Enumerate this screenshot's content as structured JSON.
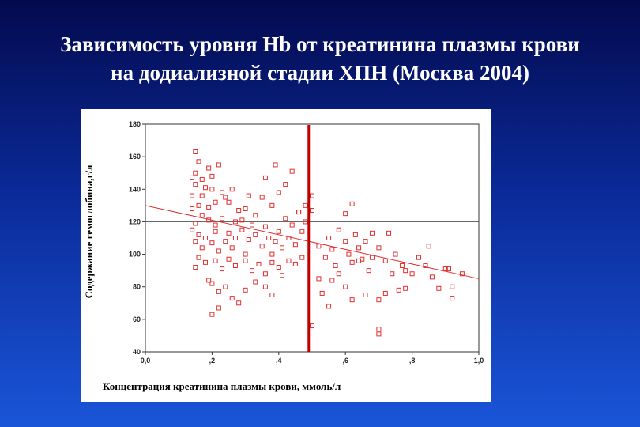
{
  "slide": {
    "title_line1": "Зависимость уровня Hb от креатинина плазмы крови",
    "title_line2": "на додиализной стадии ХПН (Москва 2004)"
  },
  "colors": {
    "background_top": "#040a4e",
    "background_bottom": "#1a55d8",
    "points": "#e03030",
    "regression": "#e03030",
    "vertical_marker": "#c00000",
    "reference_line": "#505050"
  },
  "chart_data": {
    "type": "scatter",
    "title": "",
    "xlabel": "Концентрация креатинина плазмы крови, ммоль/л",
    "ylabel": "Содержание гемоглобина,г/л",
    "xlim": [
      0.0,
      1.0
    ],
    "ylim": [
      40,
      180
    ],
    "xticks": [
      0.0,
      0.2,
      0.4,
      0.6,
      0.8,
      1.0
    ],
    "xtick_labels": [
      "0,0",
      ",2",
      ",4",
      ",6",
      ",8",
      "1,0"
    ],
    "yticks": [
      40,
      60,
      80,
      100,
      120,
      140,
      160,
      180
    ],
    "grid": false,
    "regression_line": {
      "x": [
        0.0,
        1.0
      ],
      "y": [
        130,
        85
      ]
    },
    "vertical_marker_x": 0.49,
    "horizontal_reference_y": 120,
    "points": [
      [
        0.15,
        163
      ],
      [
        0.16,
        157
      ],
      [
        0.15,
        150
      ],
      [
        0.14,
        147
      ],
      [
        0.15,
        143
      ],
      [
        0.17,
        146
      ],
      [
        0.19,
        153
      ],
      [
        0.2,
        148
      ],
      [
        0.22,
        155
      ],
      [
        0.17,
        136
      ],
      [
        0.18,
        141
      ],
      [
        0.2,
        140
      ],
      [
        0.21,
        132
      ],
      [
        0.14,
        136
      ],
      [
        0.14,
        128
      ],
      [
        0.16,
        130
      ],
      [
        0.19,
        129
      ],
      [
        0.23,
        138
      ],
      [
        0.24,
        135
      ],
      [
        0.26,
        140
      ],
      [
        0.28,
        127
      ],
      [
        0.25,
        132
      ],
      [
        0.29,
        121
      ],
      [
        0.31,
        136
      ],
      [
        0.3,
        128
      ],
      [
        0.33,
        124
      ],
      [
        0.27,
        120
      ],
      [
        0.23,
        122
      ],
      [
        0.21,
        118
      ],
      [
        0.19,
        121
      ],
      [
        0.17,
        124
      ],
      [
        0.15,
        119
      ],
      [
        0.14,
        115
      ],
      [
        0.16,
        112
      ],
      [
        0.15,
        108
      ],
      [
        0.17,
        104
      ],
      [
        0.18,
        110
      ],
      [
        0.2,
        107
      ],
      [
        0.21,
        114
      ],
      [
        0.22,
        102
      ],
      [
        0.24,
        108
      ],
      [
        0.25,
        113
      ],
      [
        0.26,
        104
      ],
      [
        0.27,
        110
      ],
      [
        0.29,
        115
      ],
      [
        0.3,
        100
      ],
      [
        0.31,
        109
      ],
      [
        0.32,
        118
      ],
      [
        0.33,
        112
      ],
      [
        0.35,
        105
      ],
      [
        0.36,
        117
      ],
      [
        0.37,
        110
      ],
      [
        0.38,
        100
      ],
      [
        0.39,
        108
      ],
      [
        0.4,
        114
      ],
      [
        0.41,
        104
      ],
      [
        0.42,
        122
      ],
      [
        0.43,
        110
      ],
      [
        0.44,
        118
      ],
      [
        0.45,
        106
      ],
      [
        0.46,
        126
      ],
      [
        0.47,
        114
      ],
      [
        0.47,
        98
      ],
      [
        0.48,
        120
      ],
      [
        0.35,
        135
      ],
      [
        0.38,
        130
      ],
      [
        0.4,
        138
      ],
      [
        0.42,
        143
      ],
      [
        0.39,
        155
      ],
      [
        0.44,
        151
      ],
      [
        0.36,
        147
      ],
      [
        0.48,
        130
      ],
      [
        0.5,
        127
      ],
      [
        0.5,
        136
      ],
      [
        0.46,
        126
      ],
      [
        0.15,
        92
      ],
      [
        0.16,
        98
      ],
      [
        0.18,
        95
      ],
      [
        0.21,
        96
      ],
      [
        0.23,
        91
      ],
      [
        0.25,
        97
      ],
      [
        0.27,
        93
      ],
      [
        0.3,
        96
      ],
      [
        0.32,
        90
      ],
      [
        0.34,
        94
      ],
      [
        0.36,
        88
      ],
      [
        0.38,
        95
      ],
      [
        0.4,
        92
      ],
      [
        0.41,
        87
      ],
      [
        0.43,
        96
      ],
      [
        0.45,
        94
      ],
      [
        0.19,
        84
      ],
      [
        0.2,
        82
      ],
      [
        0.22,
        77
      ],
      [
        0.24,
        80
      ],
      [
        0.26,
        73
      ],
      [
        0.3,
        78
      ],
      [
        0.33,
        83
      ],
      [
        0.36,
        80
      ],
      [
        0.38,
        75
      ],
      [
        0.28,
        70
      ],
      [
        0.22,
        67
      ],
      [
        0.2,
        63
      ],
      [
        0.5,
        56
      ],
      [
        0.52,
        105
      ],
      [
        0.54,
        98
      ],
      [
        0.55,
        110
      ],
      [
        0.56,
        103
      ],
      [
        0.57,
        93
      ],
      [
        0.58,
        115
      ],
      [
        0.6,
        108
      ],
      [
        0.61,
        100
      ],
      [
        0.62,
        95
      ],
      [
        0.63,
        112
      ],
      [
        0.64,
        104
      ],
      [
        0.65,
        97
      ],
      [
        0.66,
        108
      ],
      [
        0.67,
        90
      ],
      [
        0.68,
        113
      ],
      [
        0.7,
        104
      ],
      [
        0.72,
        96
      ],
      [
        0.73,
        113
      ],
      [
        0.75,
        100
      ],
      [
        0.77,
        93
      ],
      [
        0.78,
        90
      ],
      [
        0.8,
        88
      ],
      [
        0.82,
        98
      ],
      [
        0.84,
        93
      ],
      [
        0.85,
        105
      ],
      [
        0.86,
        86
      ],
      [
        0.88,
        79
      ],
      [
        0.9,
        91
      ],
      [
        0.91,
        91
      ],
      [
        0.92,
        80
      ],
      [
        0.92,
        73
      ],
      [
        0.95,
        88
      ],
      [
        0.62,
        131
      ],
      [
        0.6,
        125
      ],
      [
        0.58,
        88
      ],
      [
        0.56,
        84
      ],
      [
        0.6,
        80
      ],
      [
        0.62,
        72
      ],
      [
        0.66,
        75
      ],
      [
        0.7,
        72
      ],
      [
        0.72,
        76
      ],
      [
        0.76,
        78
      ],
      [
        0.74,
        88
      ],
      [
        0.7,
        54
      ],
      [
        0.7,
        51
      ],
      [
        0.53,
        76
      ],
      [
        0.55,
        68
      ],
      [
        0.52,
        85
      ],
      [
        0.64,
        96
      ],
      [
        0.68,
        98
      ],
      [
        0.78,
        79
      ]
    ]
  }
}
